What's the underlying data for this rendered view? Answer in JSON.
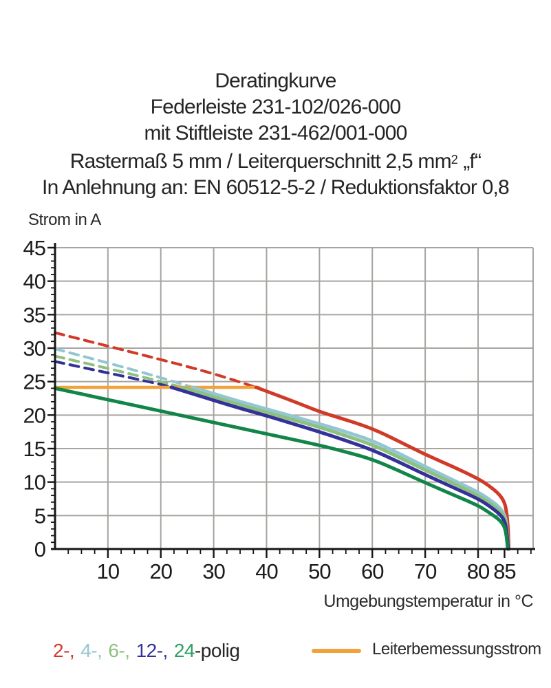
{
  "header": {
    "line1": "Deratingkurve",
    "line2": "Federleiste 231-102/026-000",
    "line3": "mit Stiftleiste 231-462/001-000",
    "line4_a": "Rastermaß 5 mm / Leiterquerschnitt 2,5 mm",
    "line4_sup": "2",
    "line4_b": " „f“",
    "line5": "In Anlehnung an: EN 60512-5-2 / Reduktionsfaktor 0,8"
  },
  "axes": {
    "y_title": "Strom in A",
    "x_title": "Umgebungstemperatur in °C"
  },
  "legend": {
    "poles": [
      {
        "label": "2-,",
        "color": "#d13a28"
      },
      {
        "label": "4-,",
        "color": "#93c6d3"
      },
      {
        "label": "6-,",
        "color": "#8ec07e"
      },
      {
        "label": "12-,",
        "color": "#34319a"
      },
      {
        "label": "24",
        "color": "#2f9e63"
      }
    ],
    "poles_suffix": "-polig",
    "rated_label": "Leiterbemessungsstrom",
    "rated_color": "#f2a23a"
  },
  "chart_data": {
    "type": "line",
    "title": "Deratingkurve Federleiste 231-102/026-000 mit Stiftleiste 231-462/001-000",
    "xlabel": "Umgebungstemperatur in °C",
    "ylabel": "Strom in A",
    "xlim": [
      0,
      90.4
    ],
    "ylim": [
      0,
      45
    ],
    "grid": true,
    "x_major_ticks": [
      10,
      20,
      30,
      40,
      50,
      60,
      70,
      80,
      85
    ],
    "x_gridlines": [
      10,
      20,
      30,
      40,
      50,
      60,
      70,
      80
    ],
    "x_minor_step": 2.5,
    "y_major_ticks": [
      0,
      5,
      10,
      15,
      20,
      25,
      30,
      35,
      40,
      45
    ],
    "y_gridlines": [
      5,
      10,
      15,
      20,
      25,
      30,
      35,
      40,
      45
    ],
    "y_minor_step": 1,
    "colors": {
      "grid": "#a8a4a0",
      "axis": "#161616",
      "tick_text": "#1c1c1c"
    },
    "series": [
      {
        "name": "2-polig-derating-dashed",
        "color": "#d13a28",
        "dashed": true,
        "width": 4,
        "points": [
          [
            0,
            32.3
          ],
          [
            10,
            30.3
          ],
          [
            20,
            28.3
          ],
          [
            30,
            26.2
          ],
          [
            38,
            24.15
          ]
        ]
      },
      {
        "name": "4-polig-derating-dashed",
        "color": "#93c6d3",
        "dashed": true,
        "width": 4,
        "points": [
          [
            0,
            29.9
          ],
          [
            10,
            27.8
          ],
          [
            20,
            25.6
          ],
          [
            26,
            24.15
          ]
        ]
      },
      {
        "name": "6-polig-derating-dashed",
        "color": "#8ec07e",
        "dashed": true,
        "width": 4,
        "points": [
          [
            0,
            28.8
          ],
          [
            10,
            27.0
          ],
          [
            20,
            25.0
          ],
          [
            24,
            24.15
          ]
        ]
      },
      {
        "name": "12-polig-derating-dashed",
        "color": "#34319a",
        "dashed": true,
        "width": 4,
        "points": [
          [
            0,
            28.0
          ],
          [
            10,
            26.3
          ],
          [
            20,
            24.6
          ],
          [
            22,
            24.15
          ]
        ]
      },
      {
        "name": "Leiterbemessungsstrom",
        "color": "#f2a23a",
        "dashed": false,
        "width": 4.5,
        "points": [
          [
            0,
            24.15
          ],
          [
            38.5,
            24.15
          ]
        ]
      },
      {
        "name": "2-polig",
        "color": "#d13a28",
        "dashed": false,
        "width": 5,
        "points": [
          [
            38,
            24.15
          ],
          [
            45,
            22.1
          ],
          [
            50,
            20.5
          ],
          [
            55,
            19.3
          ],
          [
            60,
            18.0
          ],
          [
            65,
            16.1
          ],
          [
            70,
            14.1
          ],
          [
            75,
            12.4
          ],
          [
            80,
            10.5
          ],
          [
            82,
            9.5
          ],
          [
            84,
            8.2
          ],
          [
            85,
            7.0
          ],
          [
            85.4,
            5.5
          ],
          [
            85.7,
            3.0
          ],
          [
            85.8,
            0
          ]
        ]
      },
      {
        "name": "4-polig",
        "color": "#93c6d3",
        "dashed": false,
        "width": 5,
        "points": [
          [
            26,
            24.15
          ],
          [
            30,
            23.2
          ],
          [
            35,
            22.0
          ],
          [
            40,
            20.9
          ],
          [
            45,
            19.8
          ],
          [
            50,
            18.7
          ],
          [
            55,
            17.5
          ],
          [
            60,
            16.2
          ],
          [
            65,
            14.3
          ],
          [
            70,
            12.3
          ],
          [
            75,
            10.4
          ],
          [
            80,
            8.5
          ],
          [
            82,
            7.5
          ],
          [
            84,
            6.3
          ],
          [
            85,
            5.2
          ],
          [
            85.4,
            3.8
          ],
          [
            85.7,
            0
          ]
        ]
      },
      {
        "name": "6-polig",
        "color": "#8ec07e",
        "dashed": false,
        "width": 5,
        "points": [
          [
            24,
            24.15
          ],
          [
            30,
            22.7
          ],
          [
            35,
            21.5
          ],
          [
            40,
            20.4
          ],
          [
            45,
            19.3
          ],
          [
            50,
            18.2
          ],
          [
            55,
            16.9
          ],
          [
            60,
            15.6
          ],
          [
            65,
            13.7
          ],
          [
            70,
            11.8
          ],
          [
            75,
            9.9
          ],
          [
            80,
            8.0
          ],
          [
            82,
            7.0
          ],
          [
            84,
            5.8
          ],
          [
            85,
            4.8
          ],
          [
            85.4,
            3.3
          ],
          [
            85.7,
            0
          ]
        ]
      },
      {
        "name": "12-polig",
        "color": "#34319a",
        "dashed": false,
        "width": 5,
        "points": [
          [
            22,
            24.15
          ],
          [
            30,
            22.2
          ],
          [
            35,
            21.0
          ],
          [
            40,
            19.9
          ],
          [
            45,
            18.7
          ],
          [
            50,
            17.5
          ],
          [
            55,
            16.2
          ],
          [
            60,
            14.8
          ],
          [
            65,
            13.0
          ],
          [
            70,
            11.1
          ],
          [
            75,
            9.3
          ],
          [
            80,
            7.5
          ],
          [
            82,
            6.5
          ],
          [
            84,
            5.3
          ],
          [
            85,
            4.3
          ],
          [
            85.4,
            2.8
          ],
          [
            85.7,
            0
          ]
        ]
      },
      {
        "name": "24-polig",
        "color": "#128549",
        "dashed": false,
        "width": 5,
        "points": [
          [
            0,
            24.0
          ],
          [
            10,
            22.3
          ],
          [
            20,
            20.6
          ],
          [
            30,
            18.9
          ],
          [
            40,
            17.2
          ],
          [
            50,
            15.5
          ],
          [
            55,
            14.5
          ],
          [
            60,
            13.4
          ],
          [
            65,
            11.7
          ],
          [
            70,
            9.9
          ],
          [
            75,
            8.2
          ],
          [
            80,
            6.5
          ],
          [
            82,
            5.5
          ],
          [
            84,
            4.4
          ],
          [
            85,
            3.4
          ],
          [
            85.4,
            1.8
          ],
          [
            85.6,
            0
          ]
        ]
      }
    ],
    "legend_position": "bottom"
  }
}
